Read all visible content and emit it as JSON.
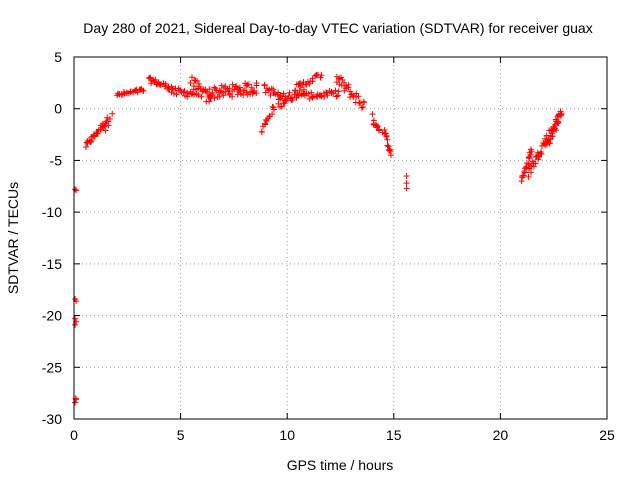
{
  "chart_data": {
    "type": "scatter",
    "title": "Day 280 of 2021, Sidereal Day-to-day VTEC variation (SDTVAR) for receiver guax",
    "xlabel": "GPS time / hours",
    "ylabel": "SDTVAR / TECUs",
    "xlim": [
      0,
      25
    ],
    "ylim": [
      -30,
      5
    ],
    "xticks": [
      0,
      5,
      10,
      15,
      20,
      25
    ],
    "yticks": [
      5,
      0,
      -5,
      -10,
      -15,
      -20,
      -25,
      -30
    ],
    "grid": true,
    "marker": "+",
    "marker_color": "#ff0000",
    "segments": [
      {
        "name": "early-outliers",
        "points": [
          [
            0.05,
            -7.8
          ],
          [
            0.1,
            -7.9
          ],
          [
            0.05,
            -18.4
          ],
          [
            0.1,
            -18.6
          ],
          [
            0.05,
            -20.3
          ],
          [
            0.1,
            -20.6
          ],
          [
            0.05,
            -20.9
          ],
          [
            0.08,
            -28.0
          ],
          [
            0.05,
            -28.4
          ],
          [
            0.1,
            -28.1
          ]
        ]
      },
      {
        "name": "arc-1",
        "x_start": 0.55,
        "x_end": 1.6,
        "y_start": -3.6,
        "y_end": -1.0,
        "n": 30,
        "spread": 0.5
      },
      {
        "name": "arc-2",
        "x_start": 1.5,
        "x_end": 1.8,
        "y_start": -2.0,
        "y_end": -0.4,
        "n": 4,
        "spread": 0.3
      },
      {
        "name": "arc-3",
        "x_start": 2.0,
        "x_end": 3.3,
        "y_start": 1.3,
        "y_end": 1.8,
        "n": 24,
        "spread": 0.4
      },
      {
        "name": "arc-4",
        "x_start": 3.5,
        "x_end": 4.6,
        "y_start": 2.8,
        "y_end": 2.0,
        "n": 26,
        "spread": 0.5
      },
      {
        "name": "arc-5",
        "x_start": 4.6,
        "x_end": 5.8,
        "y_start": 1.6,
        "y_end": 1.5,
        "n": 22,
        "spread": 0.8
      },
      {
        "name": "arc-6",
        "x_start": 5.5,
        "x_end": 6.4,
        "y_start": 2.6,
        "y_end": 0.8,
        "n": 22,
        "spread": 1.2
      },
      {
        "name": "arc-7",
        "x_start": 6.3,
        "x_end": 8.6,
        "y_start": 1.5,
        "y_end": 2.0,
        "n": 60,
        "spread": 1.2
      },
      {
        "name": "arc-8",
        "x_start": 8.8,
        "x_end": 9.4,
        "y_start": -2.2,
        "y_end": 0.3,
        "n": 14,
        "spread": 0.6
      },
      {
        "name": "arc-9",
        "x_start": 8.9,
        "x_end": 9.9,
        "y_start": 2.0,
        "y_end": 1.0,
        "n": 20,
        "spread": 0.8
      },
      {
        "name": "arc-10",
        "x_start": 9.6,
        "x_end": 10.8,
        "y_start": 0.5,
        "y_end": 2.0,
        "n": 30,
        "spread": 1.0
      },
      {
        "name": "arc-11",
        "x_start": 10.4,
        "x_end": 11.6,
        "y_start": 2.0,
        "y_end": 3.3,
        "n": 20,
        "spread": 0.6
      },
      {
        "name": "arc-12",
        "x_start": 10.8,
        "x_end": 12.4,
        "y_start": 1.2,
        "y_end": 1.5,
        "n": 28,
        "spread": 0.6
      },
      {
        "name": "arc-13",
        "x_start": 12.3,
        "x_end": 13.6,
        "y_start": 2.9,
        "y_end": 0.3,
        "n": 32,
        "spread": 1.2
      },
      {
        "name": "arc-14",
        "x_start": 14.0,
        "x_end": 14.3,
        "y_start": -0.9,
        "y_end": -2.0,
        "n": 10,
        "spread": 0.8
      },
      {
        "name": "arc-15",
        "x_start": 14.5,
        "x_end": 14.9,
        "y_start": -2.0,
        "y_end": -4.5,
        "n": 14,
        "spread": 0.6
      },
      {
        "name": "arc-16",
        "points": [
          [
            15.6,
            -6.5
          ],
          [
            15.6,
            -7.2
          ],
          [
            15.6,
            -7.7
          ]
        ]
      },
      {
        "name": "arc-17",
        "x_start": 21.0,
        "x_end": 21.5,
        "y_start": -6.8,
        "y_end": -4.0,
        "n": 18,
        "spread": 0.6
      },
      {
        "name": "arc-18",
        "x_start": 21.3,
        "x_end": 22.7,
        "y_start": -6.2,
        "y_end": -1.0,
        "n": 40,
        "spread": 0.9
      },
      {
        "name": "arc-19",
        "x_start": 22.2,
        "x_end": 22.9,
        "y_start": -3.5,
        "y_end": -0.2,
        "n": 24,
        "spread": 0.9
      }
    ]
  }
}
